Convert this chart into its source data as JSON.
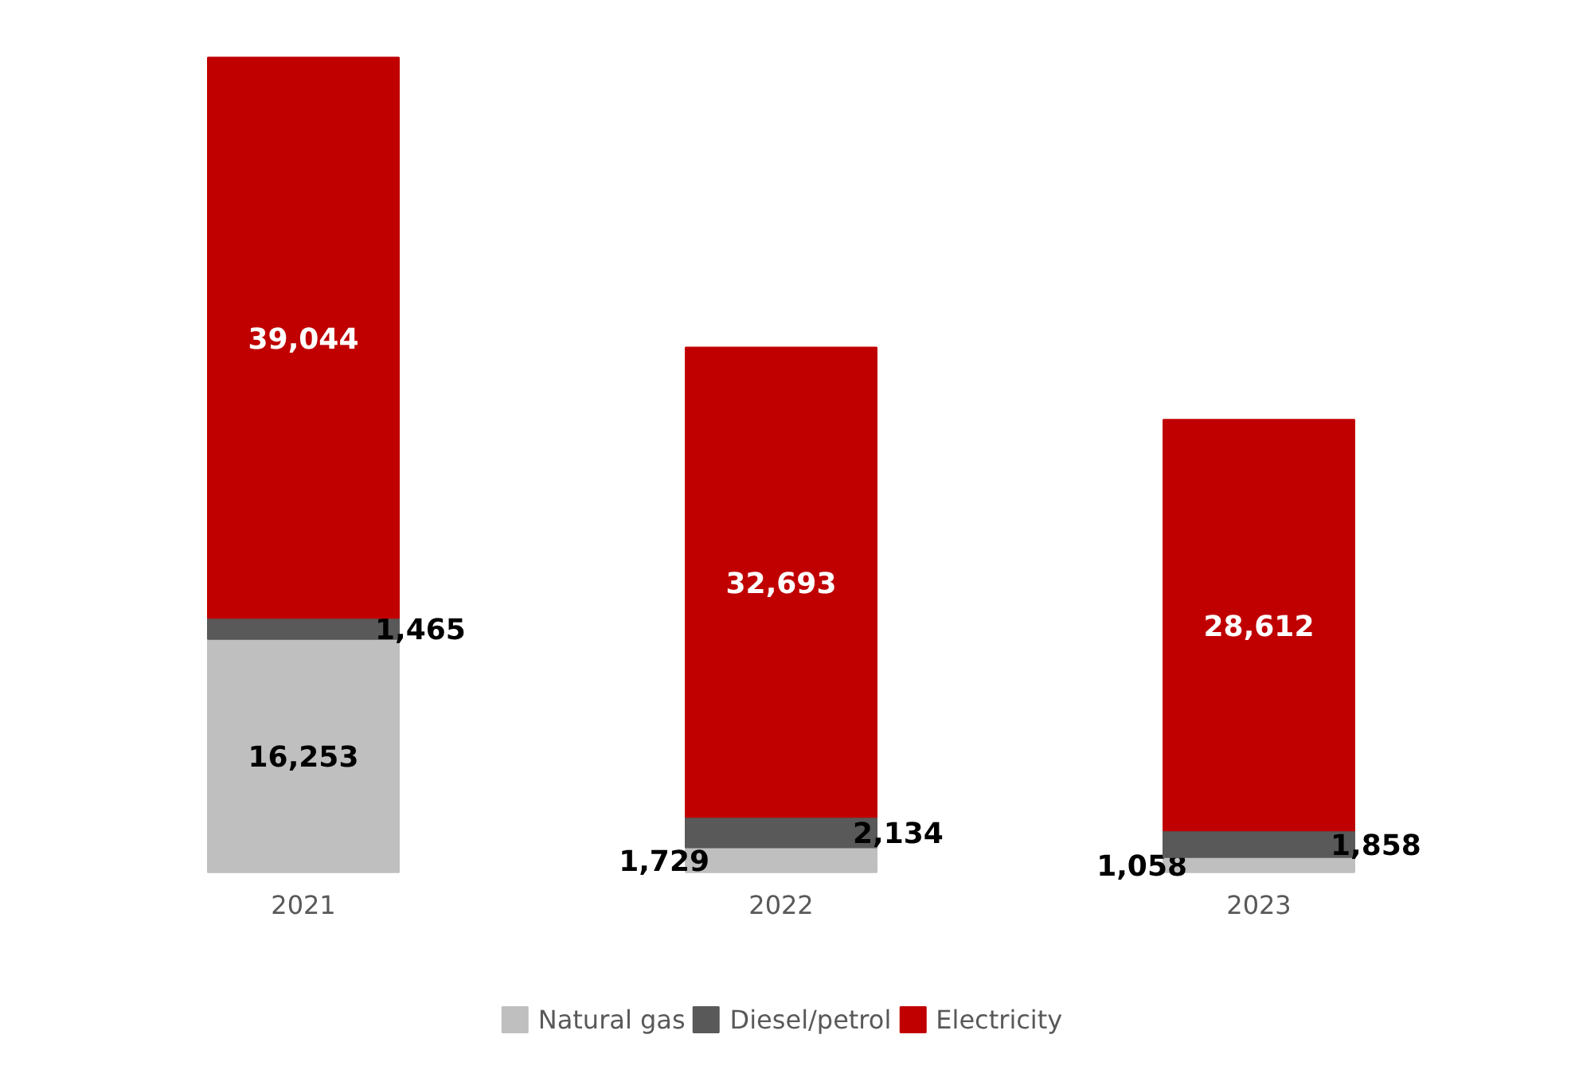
{
  "chart_data": {
    "type": "bar",
    "stacked": true,
    "categories": [
      "2021",
      "2022",
      "2023"
    ],
    "series": [
      {
        "name": "Natural gas",
        "color": "#bfbfbf",
        "values": [
          16253,
          1729,
          1058
        ],
        "value_labels": [
          "16,253",
          "1,729",
          "1,058"
        ]
      },
      {
        "name": "Diesel/petrol",
        "color": "#595959",
        "values": [
          1465,
          2134,
          1858
        ],
        "value_labels": [
          "1,465",
          "2,134",
          "1,858"
        ]
      },
      {
        "name": "Electricity",
        "color": "#c00000",
        "values": [
          39044,
          32693,
          28612
        ],
        "value_labels": [
          "39,044",
          "32,693",
          "28,612"
        ]
      }
    ],
    "legend": "bottom",
    "grid": false
  }
}
